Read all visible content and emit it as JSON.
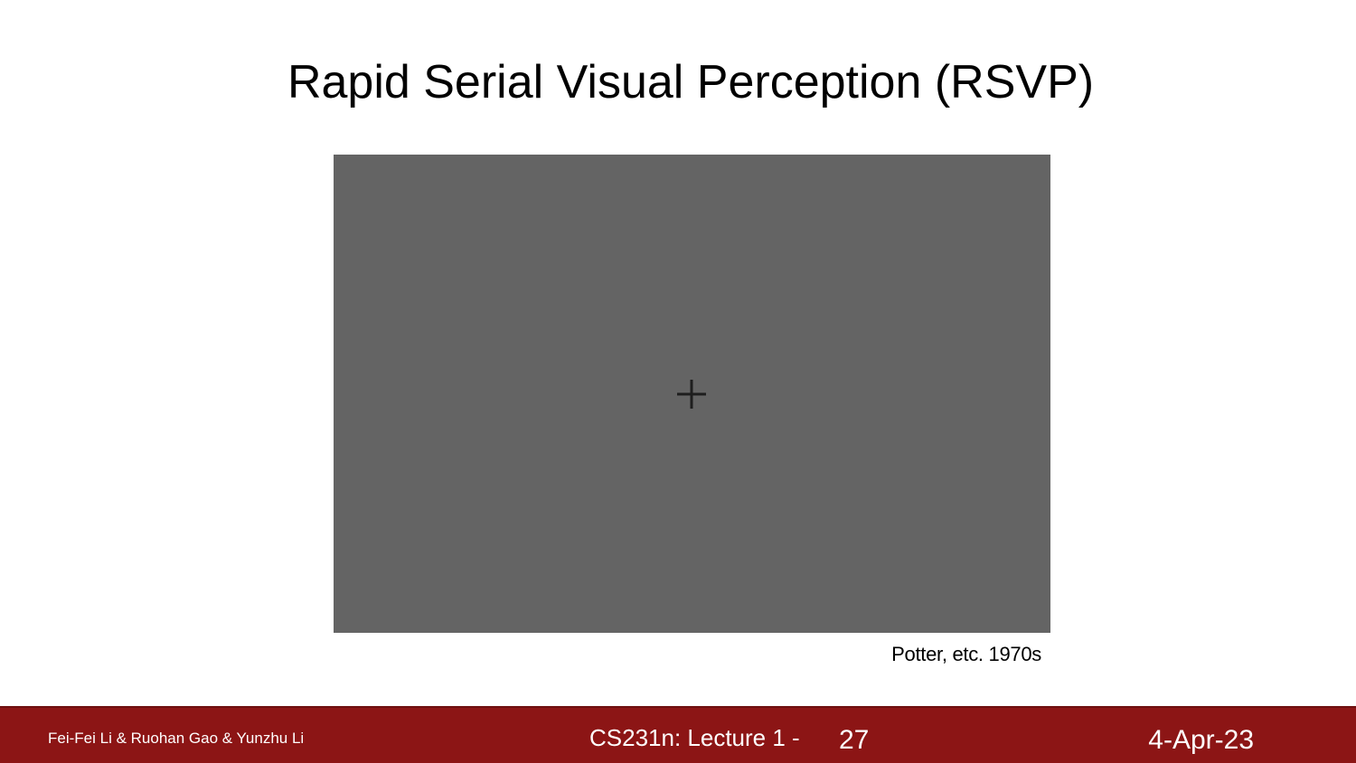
{
  "slide": {
    "title": "Rapid Serial Visual Perception (RSVP)",
    "citation": "Potter, etc. 1970s",
    "stimulus": {
      "background_color": "#646464",
      "fixation_icon": "plus-icon"
    }
  },
  "footer": {
    "authors": "Fei-Fei Li & Ruohan Gao & Yunzhu Li",
    "course": "CS231n: Lecture 1 -",
    "page_number": "27",
    "date": "4-Apr-23",
    "background_color": "#8c1515"
  }
}
